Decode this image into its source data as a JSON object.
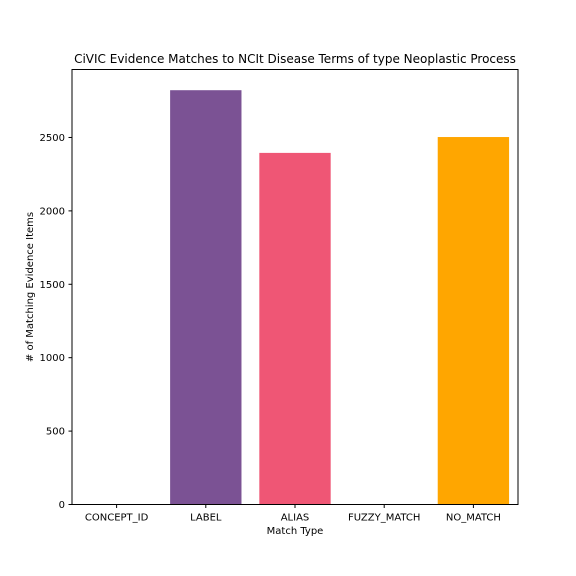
{
  "chart_data": {
    "type": "bar",
    "title": "CiVIC Evidence Matches to NCIt Disease Terms of type Neoplastic Process",
    "xlabel": "Match Type",
    "ylabel": "# of Matching Evidence Items",
    "categories": [
      "CONCEPT_ID",
      "LABEL",
      "ALIAS",
      "FUZZY_MATCH",
      "NO_MATCH"
    ],
    "values": [
      0,
      2822,
      2395,
      0,
      2503
    ],
    "colors": [
      "#7b5294",
      "#7b5294",
      "#ef5675",
      "#ffa600",
      "#ffa600"
    ],
    "ylim": [
      0,
      2963
    ],
    "yticks": [
      0,
      500,
      1000,
      1500,
      2000,
      2500
    ],
    "grid": false,
    "legend": "none"
  }
}
